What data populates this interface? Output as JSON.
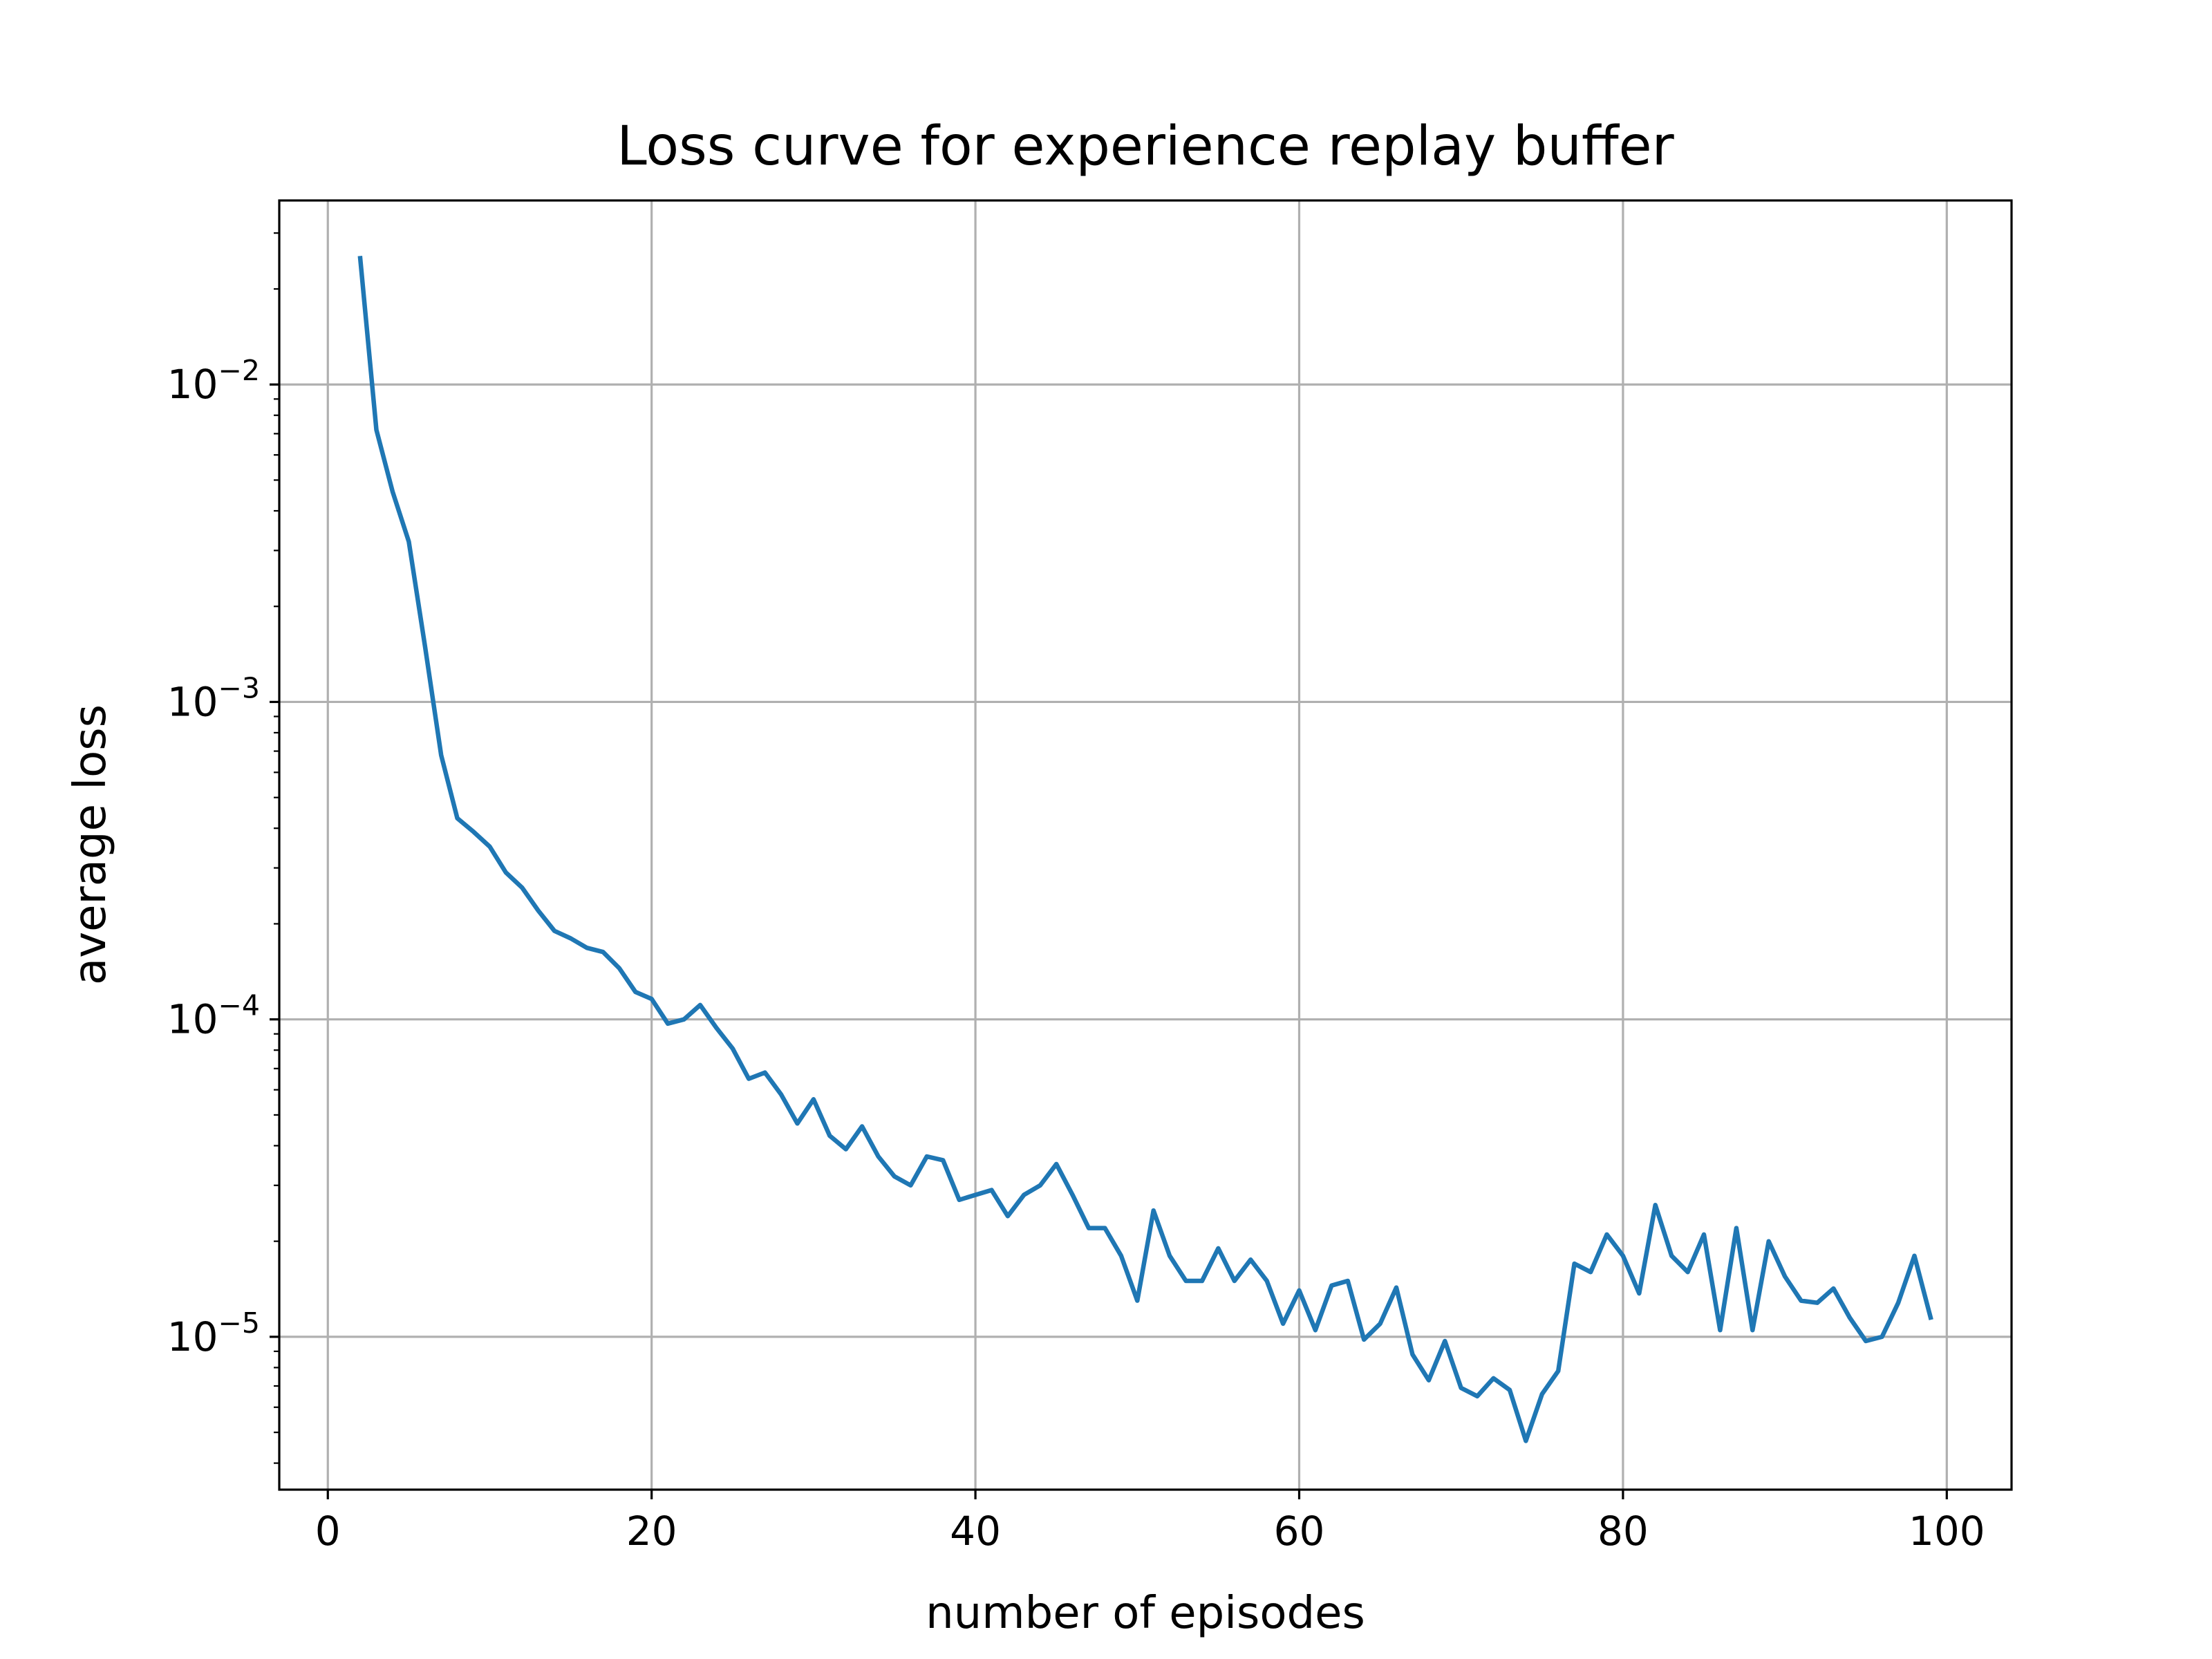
{
  "chart_data": {
    "type": "line",
    "title": "Loss curve for experience replay buffer",
    "xlabel": "number of episodes",
    "ylabel": "average loss",
    "yscale": "log",
    "xlim": [
      -3,
      104
    ],
    "ylim": [
      3.3e-06,
      0.038
    ],
    "grid": true,
    "legend": "none",
    "xticks": [
      0,
      20,
      40,
      60,
      80,
      100
    ],
    "xtick_labels": [
      "0",
      "20",
      "40",
      "60",
      "80",
      "100"
    ],
    "yticks": [
      1e-05,
      0.0001,
      0.001,
      0.01
    ],
    "ytick_labels": [
      {
        "base": "10",
        "exp": "−5"
      },
      {
        "base": "10",
        "exp": "−4"
      },
      {
        "base": "10",
        "exp": "−3"
      },
      {
        "base": "10",
        "exp": "−2"
      }
    ],
    "series": [
      {
        "color": "#1f77b4",
        "x": [
          2,
          3,
          4,
          5,
          6,
          7,
          8,
          9,
          10,
          11,
          12,
          13,
          14,
          15,
          16,
          17,
          18,
          19,
          20,
          21,
          22,
          23,
          24,
          25,
          26,
          27,
          28,
          29,
          30,
          31,
          32,
          33,
          34,
          35,
          36,
          37,
          38,
          39,
          40,
          41,
          42,
          43,
          44,
          45,
          46,
          47,
          48,
          49,
          50,
          51,
          52,
          53,
          54,
          55,
          56,
          57,
          58,
          59,
          60,
          61,
          62,
          63,
          64,
          65,
          66,
          67,
          68,
          69,
          70,
          71,
          72,
          73,
          74,
          75,
          76,
          77,
          78,
          79,
          80,
          81,
          82,
          83,
          84,
          85,
          86,
          87,
          88,
          89,
          90,
          91,
          92,
          93,
          94,
          95,
          96,
          97,
          98,
          99
        ],
        "y": [
          0.025,
          0.0072,
          0.0046,
          0.0032,
          0.0015,
          0.00068,
          0.00043,
          0.00039,
          0.00035,
          0.00029,
          0.00026,
          0.00022,
          0.00019,
          0.00018,
          0.000168,
          0.000163,
          0.000145,
          0.000122,
          0.000116,
          9.7e-05,
          0.0001,
          0.000111,
          9.4e-05,
          8.1e-05,
          6.5e-05,
          6.8e-05,
          5.8e-05,
          4.7e-05,
          5.6e-05,
          4.3e-05,
          3.9e-05,
          4.6e-05,
          3.7e-05,
          3.2e-05,
          3e-05,
          3.7e-05,
          3.6e-05,
          2.7e-05,
          2.8e-05,
          2.9e-05,
          2.4e-05,
          2.8e-05,
          3e-05,
          3.5e-05,
          2.8e-05,
          2.2e-05,
          2.2e-05,
          1.8e-05,
          1.3e-05,
          2.5e-05,
          1.8e-05,
          1.5e-05,
          1.5e-05,
          1.9e-05,
          1.5e-05,
          1.75e-05,
          1.5e-05,
          1.1e-05,
          1.4e-05,
          1.05e-05,
          1.45e-05,
          1.5e-05,
          9.8e-06,
          1.1e-05,
          1.43e-05,
          8.8e-06,
          7.3e-06,
          9.7e-06,
          6.9e-06,
          6.5e-06,
          7.4e-06,
          6.8e-06,
          4.7e-06,
          6.6e-06,
          7.8e-06,
          1.7e-05,
          1.6e-05,
          2.1e-05,
          1.8e-05,
          1.37e-05,
          2.6e-05,
          1.8e-05,
          1.6e-05,
          2.1e-05,
          1.05e-05,
          2.2e-05,
          1.05e-05,
          2e-05,
          1.55e-05,
          1.3e-05,
          1.28e-05,
          1.42e-05,
          1.15e-05,
          9.7e-06,
          1e-05,
          1.28e-05,
          1.8e-05,
          1.15e-05
        ]
      }
    ]
  }
}
